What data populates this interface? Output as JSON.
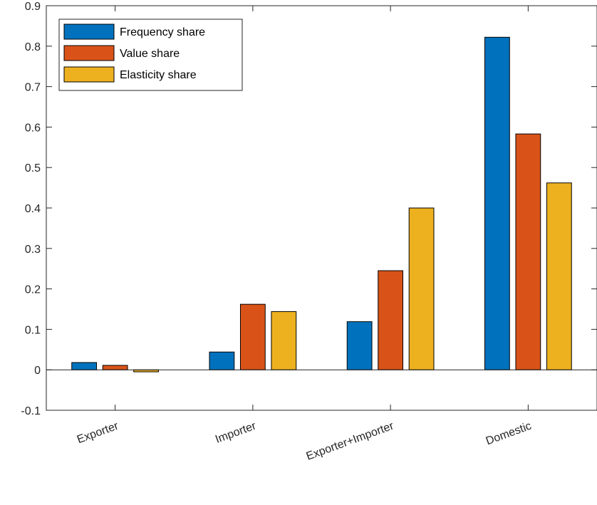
{
  "chart_data": {
    "type": "bar",
    "categories": [
      "Exporter",
      "Importer",
      "Exporter+Importer",
      "Domestic"
    ],
    "series": [
      {
        "name": "Frequency share",
        "color": "#0072BD",
        "values": [
          0.018,
          0.044,
          0.119,
          0.822
        ]
      },
      {
        "name": "Value share",
        "color": "#D95319",
        "values": [
          0.011,
          0.162,
          0.245,
          0.583
        ]
      },
      {
        "name": "Elasticity share",
        "color": "#EDB120",
        "values": [
          -0.005,
          0.144,
          0.4,
          0.462
        ]
      }
    ],
    "ylim": [
      -0.1,
      0.9
    ],
    "yticks": [
      -0.1,
      0,
      0.1,
      0.2,
      0.3,
      0.4,
      0.5,
      0.6,
      0.7,
      0.8,
      0.9
    ],
    "ytick_labels": [
      "-0.1",
      "0",
      "0.1",
      "0.2",
      "0.3",
      "0.4",
      "0.5",
      "0.6",
      "0.7",
      "0.8",
      "0.9"
    ],
    "xtick_label_rotation_deg": 20,
    "grid": false,
    "legend_placement": "top-left",
    "axis_color": "#262626"
  }
}
